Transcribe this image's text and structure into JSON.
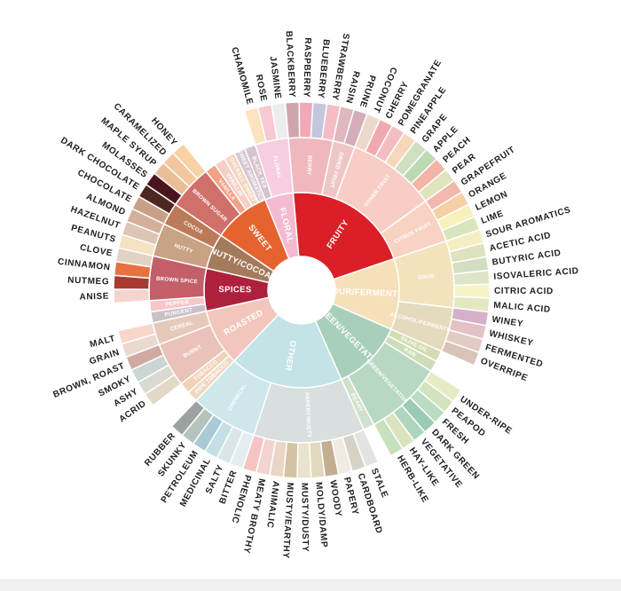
{
  "page": {
    "background": "#ffffff",
    "bottom_strip_color": "#f1f1f3"
  },
  "chart_data": {
    "type": "sunburst",
    "rings": [
      "category",
      "subcategory",
      "flavor"
    ],
    "start_angle_deg": -5,
    "legend": "none",
    "center_hole": true,
    "categories": [
      {
        "label": "FRUITY",
        "color": "#da1f26",
        "children": [
          {
            "label": "BERRY",
            "color": "#f0b8bd",
            "children": [
              {
                "label": "BLACKBERRY",
                "color": "#cfa5ad"
              },
              {
                "label": "RASPBERRY",
                "color": "#f2a9b5"
              },
              {
                "label": "BLUEBERRY",
                "color": "#c3c7dd"
              },
              {
                "label": "STRAWBERRY",
                "color": "#f4bdc6"
              }
            ]
          },
          {
            "label": "DRIED FRUIT",
            "color": "#edc6c5",
            "children": [
              {
                "label": "RAISIN",
                "color": "#dfb7bf"
              },
              {
                "label": "PRUNE",
                "color": "#d5adb8"
              }
            ]
          },
          {
            "label": "OTHER FRUIT",
            "color": "#f8cdc6",
            "children": [
              {
                "label": "COCONUT",
                "color": "#ecd9cb"
              },
              {
                "label": "CHERRY",
                "color": "#f0a9b1"
              },
              {
                "label": "POMEGRANATE",
                "color": "#f3bdc1"
              },
              {
                "label": "PINEAPPLE",
                "color": "#f6d7ba"
              },
              {
                "label": "GRAPE",
                "color": "#cfe0c1"
              },
              {
                "label": "APPLE",
                "color": "#bcd9b4"
              },
              {
                "label": "PEACH",
                "color": "#f4b4a5"
              },
              {
                "label": "PEAR",
                "color": "#e0e4bd"
              }
            ]
          },
          {
            "label": "CITRUS FRUIT",
            "color": "#f8d2c3",
            "children": [
              {
                "label": "GRAPEFRUIT",
                "color": "#f2b8ad"
              },
              {
                "label": "ORANGE",
                "color": "#f6cfa5"
              },
              {
                "label": "LEMON",
                "color": "#f8f1bd"
              },
              {
                "label": "LIME",
                "color": "#d9e6bb"
              }
            ]
          }
        ]
      },
      {
        "label": "SOUR/FERMENTED",
        "color": "#f6e0b9",
        "children": [
          {
            "label": "SOUR",
            "color": "#f3e3bd",
            "children": [
              {
                "label": "SOUR AROMATICS",
                "color": "#f6eec3"
              },
              {
                "label": "ACETIC ACID",
                "color": "#dce3bd"
              },
              {
                "label": "BUTYRIC ACID",
                "color": "#d3ddc1"
              },
              {
                "label": "ISOVALERIC ACID",
                "color": "#dde5c6"
              },
              {
                "label": "CITRIC ACID",
                "color": "#f8f3c6"
              },
              {
                "label": "MALIC ACID",
                "color": "#e3e8c2"
              }
            ]
          },
          {
            "label": "ALCOHOL/FERMENTED",
            "color": "#e4dabe",
            "children": [
              {
                "label": "WINEY",
                "color": "#d6b0ca"
              },
              {
                "label": "WHISKEY",
                "color": "#e3c1c7"
              },
              {
                "label": "FERMENTED",
                "color": "#e0ccc3"
              },
              {
                "label": "OVERRIPE",
                "color": "#d9c3b7"
              }
            ]
          }
        ]
      },
      {
        "label": "GREEN/VEGETATIVE",
        "color": "#a8cfba",
        "children": [
          {
            "label": "OLIVE OIL",
            "color": "#d3ddb3"
          },
          {
            "label": "RAW",
            "color": "#cfdcba"
          },
          {
            "label": "GREEN/VEGETATIVE",
            "color": "#b9d8c4",
            "children": [
              {
                "label": "UNDER-RIPE",
                "color": "#e7ebc5"
              },
              {
                "label": "PEAPOD",
                "color": "#d3e3c0"
              },
              {
                "label": "FRESH",
                "color": "#b9dcc3"
              },
              {
                "label": "DARK GREEN",
                "color": "#9ccbb3"
              },
              {
                "label": "VEGETATIVE",
                "color": "#aed6bd"
              },
              {
                "label": "HAY-LIKE",
                "color": "#dae3bd"
              },
              {
                "label": "HERB-LIKE",
                "color": "#c7e0bd"
              }
            ]
          },
          {
            "label": "BEANY",
            "color": "#cfe0cd"
          }
        ]
      },
      {
        "label": "OTHER",
        "color": "#c3e3e6",
        "children": [
          {
            "label": "PAPERY/MUSTY",
            "color": "#d9dfdf",
            "children": [
              {
                "label": "STALE",
                "color": "#e3e4e0"
              },
              {
                "label": "CARDBOARD",
                "color": "#d6d2c6"
              },
              {
                "label": "PAPERY",
                "color": "#f0ece3"
              },
              {
                "label": "WOODY",
                "color": "#c3ae92"
              },
              {
                "label": "MOLDY/DAMP",
                "color": "#e2d8be"
              },
              {
                "label": "MUSTY/DUSTY",
                "color": "#e9e2cc"
              },
              {
                "label": "MUSTY/EARTHY",
                "color": "#d3c3a4"
              },
              {
                "label": "ANIMALIC",
                "color": "#ead6c6"
              },
              {
                "label": "MEATY BROTHY",
                "color": "#f3d4cf"
              },
              {
                "label": "PHENOLIC",
                "color": "#f6c3c3"
              }
            ]
          },
          {
            "label": "CHEMICAL",
            "color": "#cde7ea",
            "children": [
              {
                "label": "BITTER",
                "color": "#e4eef0"
              },
              {
                "label": "SALTY",
                "color": "#d9e5e8"
              },
              {
                "label": "MEDICINAL",
                "color": "#c4dfe5"
              },
              {
                "label": "PETROLEUM",
                "color": "#a9c9d4"
              },
              {
                "label": "SKUNKY",
                "color": "#b4c3bd"
              },
              {
                "label": "RUBBER",
                "color": "#9aa3a2"
              }
            ]
          }
        ]
      },
      {
        "label": "ROASTED",
        "color": "#f2c6bd",
        "children": [
          {
            "label": "PIPE TOBACCO",
            "color": "#f0d8c3"
          },
          {
            "label": "TOBACCO",
            "color": "#f1d3b8"
          },
          {
            "label": "BURNT",
            "color": "#e9c3ba",
            "children": [
              {
                "label": "ACRID",
                "color": "#e3d7c5"
              },
              {
                "label": "ASHY",
                "color": "#dcd9d0"
              },
              {
                "label": "SMOKY",
                "color": "#c9d6d2"
              },
              {
                "label": "BROWN, ROAST",
                "color": "#cfaaa1"
              }
            ]
          },
          {
            "label": "CEREAL",
            "color": "#e5cabb",
            "children": [
              {
                "label": "GRAIN",
                "color": "#ead9ce"
              },
              {
                "label": "MALT",
                "color": "#f8d7ca"
              }
            ]
          }
        ]
      },
      {
        "label": "SPICES",
        "color": "#ad213e",
        "children": [
          {
            "label": "PUNGENT",
            "color": "#cbc0c8"
          },
          {
            "label": "PEPPER",
            "color": "#f6c6c9"
          },
          {
            "label": "BROWN SPICE",
            "color": "#c25f69",
            "children": [
              {
                "label": "ANISE",
                "color": "#f4d5cd"
              },
              {
                "label": "NUTMEG",
                "color": "#a93a32"
              },
              {
                "label": "CINNAMON",
                "color": "#e77140"
              },
              {
                "label": "CLOVE",
                "color": "#e2d2c2"
              }
            ]
          }
        ]
      },
      {
        "label": "NUTTY/COCOA",
        "color": "#a37a5b",
        "children": [
          {
            "label": "NUTTY",
            "color": "#c9a183",
            "children": [
              {
                "label": "PEANUTS",
                "color": "#f3e3c3"
              },
              {
                "label": "HAZELNUT",
                "color": "#dcc5b3"
              },
              {
                "label": "ALMOND",
                "color": "#d4b09b"
              }
            ]
          },
          {
            "label": "COCOA",
            "color": "#bb7b58",
            "children": [
              {
                "label": "CHOCOLATE",
                "color": "#c8a087"
              },
              {
                "label": "DARK CHOCOLATE",
                "color": "#4e2722"
              }
            ]
          }
        ]
      },
      {
        "label": "SWEET",
        "color": "#e5632e",
        "children": [
          {
            "label": "BROWN SUGAR",
            "color": "#d0706a",
            "children": [
              {
                "label": "MOLASSES",
                "color": "#4a161d"
              },
              {
                "label": "MAPLE SYRUP",
                "color": "#e9bd96"
              },
              {
                "label": "CARAMELIZED",
                "color": "#f2c79e"
              },
              {
                "label": "HONEY",
                "color": "#f8d2a5"
              }
            ]
          },
          {
            "label": "VANILLA",
            "color": "#f2a285"
          },
          {
            "label": "VANILLIN",
            "color": "#f7cfc5"
          },
          {
            "label": "OVERALL SWEET",
            "color": "#f4d3c0"
          },
          {
            "label": "SWEET AROMATICS",
            "color": "#d6c7cf"
          }
        ]
      },
      {
        "label": "FLORAL",
        "color": "#f5b9d0",
        "children": [
          {
            "label": "BLACK TEA",
            "color": "#d7c3cd"
          },
          {
            "label": "FLORAL",
            "color": "#f7cde1",
            "children": [
              {
                "label": "CHAMOMILE",
                "color": "#fbe3bf"
              },
              {
                "label": "ROSE",
                "color": "#f7c9d2"
              },
              {
                "label": "JASMINE",
                "color": "#ededee"
              }
            ]
          }
        ]
      }
    ]
  }
}
